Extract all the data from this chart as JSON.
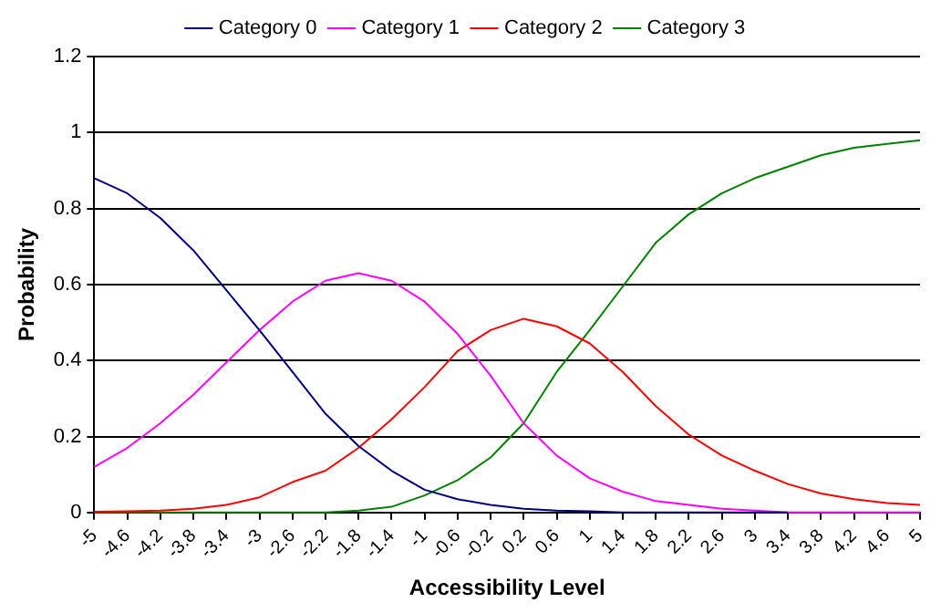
{
  "chart_data": {
    "type": "line",
    "xlabel": "Accessibility Level",
    "ylabel": "Probability",
    "x": [
      -5,
      -4.6,
      -4.2,
      -3.8,
      -3.4,
      -3,
      -2.6,
      -2.2,
      -1.8,
      -1.4,
      -1,
      -0.6,
      -0.2,
      0.2,
      0.6,
      1,
      1.4,
      1.8,
      2.2,
      2.6,
      3,
      3.4,
      3.8,
      4.2,
      4.6,
      5
    ],
    "series": [
      {
        "name": "Category 0",
        "color": "#000080",
        "values": [
          0.88,
          0.84,
          0.775,
          0.69,
          0.585,
          0.48,
          0.37,
          0.26,
          0.175,
          0.11,
          0.06,
          0.035,
          0.02,
          0.01,
          0.005,
          0.003,
          0,
          0,
          0,
          0,
          0,
          0,
          null,
          null,
          null,
          null
        ]
      },
      {
        "name": "Category 1",
        "color": "#ff00ff",
        "values": [
          0.12,
          0.17,
          0.235,
          0.31,
          0.395,
          0.48,
          0.555,
          0.61,
          0.63,
          0.61,
          0.555,
          0.47,
          0.36,
          0.235,
          0.15,
          0.09,
          0.055,
          0.03,
          0.02,
          0.01,
          0.005,
          0,
          0,
          0,
          0,
          0
        ]
      },
      {
        "name": "Category 2",
        "color": "#ff0000",
        "values": [
          0.002,
          0.003,
          0.005,
          0.01,
          0.02,
          0.04,
          0.08,
          0.11,
          0.17,
          0.245,
          0.33,
          0.425,
          0.48,
          0.51,
          0.49,
          0.445,
          0.37,
          0.28,
          0.205,
          0.15,
          0.11,
          0.075,
          0.05,
          0.035,
          0.025,
          0.02
        ]
      },
      {
        "name": "Category 3",
        "color": "#008000",
        "values": [
          0,
          0,
          0,
          0,
          0,
          0,
          0,
          0,
          0.005,
          0.015,
          0.045,
          0.085,
          0.145,
          0.235,
          0.37,
          0.48,
          0.595,
          0.71,
          0.785,
          0.84,
          0.88,
          0.91,
          0.94,
          0.96,
          0.97,
          0.98
        ]
      }
    ],
    "xlim": [
      -5,
      5
    ],
    "xticks": [
      -5,
      -4.6,
      -4.2,
      -3.8,
      -3.4,
      -3,
      -2.6,
      -2.2,
      -1.8,
      -1.4,
      -1,
      -0.6,
      -0.2,
      0.2,
      0.6,
      1,
      1.4,
      1.8,
      2.2,
      2.6,
      3,
      3.4,
      3.8,
      4.2,
      4.6,
      5
    ],
    "ylim": [
      0,
      1.2
    ],
    "yticks": [
      0,
      0.2,
      0.4,
      0.6,
      0.8,
      1,
      1.2
    ],
    "grid": "y",
    "legend": "top",
    "marker": "none",
    "line_style": "solid"
  }
}
